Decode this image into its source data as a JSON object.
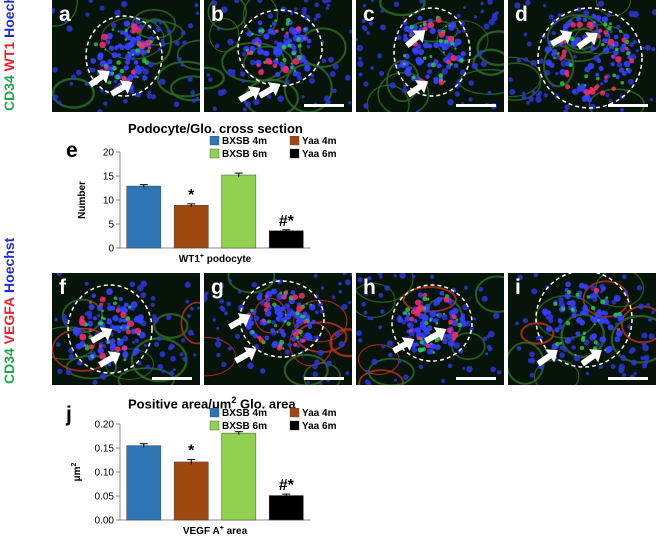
{
  "figure": {
    "top_stain_labels": [
      {
        "text": "CD34",
        "color": "#18a84a"
      },
      {
        "text": "WT1",
        "color": "#e8222a"
      },
      {
        "text": "Hoechst",
        "color": "#1f2bd1"
      }
    ],
    "bottom_stain_labels": [
      {
        "text": "CD34",
        "color": "#18a84a"
      },
      {
        "text": "VEGFA",
        "color": "#e8222a"
      },
      {
        "text": "Hoechst",
        "color": "#1f2bd1"
      }
    ],
    "top_panels": [
      "a",
      "b",
      "c",
      "d"
    ],
    "bottom_panels": [
      "f",
      "g",
      "h",
      "i"
    ],
    "chart_letters": {
      "e": "e",
      "j": "j"
    }
  },
  "chart_data": [
    {
      "type": "bar",
      "panel": "e",
      "title": "Podocyte/Glo. cross section",
      "ylabel": "Number",
      "xlabel_main": "WT1",
      "xlabel_sup": "+",
      "xlabel_rest": " podocyte",
      "ylim": [
        0,
        20
      ],
      "yticks": [
        0,
        5,
        10,
        15,
        20
      ],
      "ytick_labels": [
        "0",
        "5",
        "10",
        "15",
        "20"
      ],
      "series": [
        {
          "name": "BXSB 4m",
          "value": 12.9,
          "error": 0.3,
          "color": "#2e75b6",
          "annotation": ""
        },
        {
          "name": "Yaa 4m",
          "value": 8.9,
          "error": 0.3,
          "color": "#a0480f",
          "annotation": "*"
        },
        {
          "name": "BXSB 6m",
          "value": 15.2,
          "error": 0.4,
          "color": "#92d050",
          "annotation": ""
        },
        {
          "name": "Yaa 6m",
          "value": 3.6,
          "error": 0.2,
          "color": "#000000",
          "annotation": "#*"
        }
      ],
      "legend_order": [
        0,
        2,
        1,
        3
      ]
    },
    {
      "type": "bar",
      "panel": "j",
      "title_main": "Positive area/μm",
      "title_sup": "2",
      "title_rest": " Glo. area",
      "ylabel_main": "μm",
      "ylabel_sup": "2",
      "xlabel_main": "VEGF A",
      "xlabel_sup": "+",
      "xlabel_rest": " area",
      "ylim": [
        0,
        0.2
      ],
      "yticks": [
        0,
        0.05,
        0.1,
        0.15,
        0.2
      ],
      "ytick_labels": [
        "0.00",
        "0.05",
        "0.10",
        "0.15",
        "0.20"
      ],
      "series": [
        {
          "name": "BXSB 4m",
          "value": 0.155,
          "error": 0.004,
          "color": "#2e75b6",
          "annotation": ""
        },
        {
          "name": "Yaa 4m",
          "value": 0.121,
          "error": 0.005,
          "color": "#a0480f",
          "annotation": "*"
        },
        {
          "name": "BXSB 6m",
          "value": 0.181,
          "error": 0.003,
          "color": "#92d050",
          "annotation": ""
        },
        {
          "name": "Yaa 6m",
          "value": 0.051,
          "error": 0.003,
          "color": "#000000",
          "annotation": "#*"
        }
      ],
      "legend_order": [
        0,
        2,
        1,
        3
      ]
    }
  ]
}
